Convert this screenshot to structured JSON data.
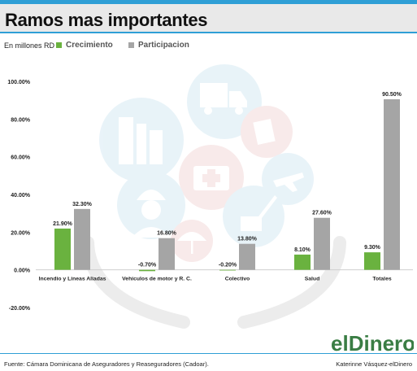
{
  "header": {
    "title": "Ramos mas importantes"
  },
  "unit_label": "En millones RD",
  "legend": [
    {
      "label": "Crecimiento",
      "color": "#6ab23f"
    },
    {
      "label": "Participacion",
      "color": "#a5a5a5"
    }
  ],
  "chart_data": {
    "type": "bar",
    "title": "Ramos mas importantes",
    "categories": [
      "Incendio y Lineas Aliadas",
      "Vehiculos de motor y R. C.",
      "Colectivo",
      "Salud",
      "Totales"
    ],
    "series": [
      {
        "name": "Crecimiento",
        "color": "#6ab23f",
        "values": [
          21.9,
          -0.7,
          -0.2,
          8.1,
          9.3
        ],
        "labels": [
          "21.90%",
          "-0.70%",
          "-0.20%",
          "8.10%",
          "9.30%"
        ]
      },
      {
        "name": "Participacion",
        "color": "#a5a5a5",
        "values": [
          32.3,
          16.8,
          13.8,
          27.6,
          90.5
        ],
        "labels": [
          "32.30%",
          "16.80%",
          "13.80%",
          "27.60%",
          "90.50%"
        ]
      }
    ],
    "yticks": [
      "100.00%",
      "80.00%",
      "60.00%",
      "40.00%",
      "20.00%",
      "0.00%",
      "-20.00%"
    ],
    "ylim": [
      -20,
      100
    ],
    "grid": false,
    "legend_position": "top"
  },
  "footer": {
    "source": "Fuente: Cámara Dominicana de Aseguradores y Reaseguradores (Cadoar).",
    "author": "Katerinne Vásquez-elDinero"
  },
  "logo": {
    "text_prefix": "el",
    "text_main": "Diner",
    "text_suffix": "o"
  }
}
